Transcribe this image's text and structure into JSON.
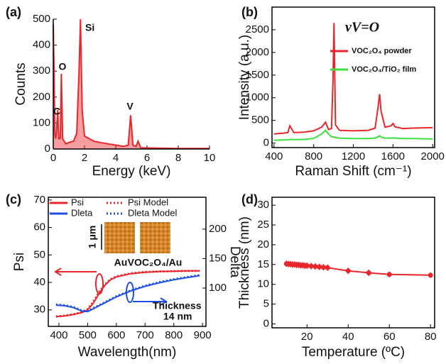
{
  "chart_data": [
    {
      "type": "area",
      "label": "(a)",
      "xlabel": "Energy (keV)",
      "ylabel": "Counts",
      "xlim": [
        0,
        10
      ],
      "ylim": [
        0,
        500
      ],
      "xticks": [
        0,
        2,
        4,
        6,
        8,
        10
      ],
      "yticks": [
        0,
        100,
        200,
        300,
        400,
        500
      ],
      "annotations": [
        "Si",
        "O",
        "C",
        "V"
      ],
      "x": [
        0,
        0.05,
        0.1,
        0.15,
        0.2,
        0.28,
        0.35,
        0.45,
        0.52,
        0.6,
        0.8,
        1.0,
        1.3,
        1.5,
        1.65,
        1.74,
        1.85,
        2.0,
        2.3,
        2.6,
        3,
        3.5,
        4,
        4.5,
        4.8,
        4.95,
        5.1,
        5.3,
        5.43,
        5.6,
        6,
        7,
        8,
        9,
        10
      ],
      "series": [
        {
          "color": "#e8262b",
          "values": [
            480,
            300,
            60,
            40,
            60,
            150,
            40,
            40,
            290,
            40,
            20,
            25,
            30,
            60,
            300,
            500,
            150,
            50,
            40,
            30,
            25,
            20,
            15,
            10,
            15,
            130,
            15,
            10,
            30,
            5,
            4,
            3,
            2,
            2,
            2
          ]
        }
      ]
    },
    {
      "type": "line",
      "label": "(b)",
      "xlabel": "Raman Shift (cm⁻¹)",
      "ylabel": "Intensity (a.u.)",
      "xlim": [
        380,
        2020
      ],
      "ylim": [
        -100,
        3000
      ],
      "xticks": [
        400,
        800,
        1200,
        1600,
        2000
      ],
      "yticks": [
        0,
        500,
        1000,
        1500,
        2000,
        2500
      ],
      "annotations": [
        "νV=O"
      ],
      "x": [
        400,
        500,
        540,
        560,
        600,
        700,
        800,
        880,
        920,
        950,
        980,
        995,
        1005,
        1020,
        1060,
        1200,
        1350,
        1420,
        1450,
        1465,
        1480,
        1520,
        1580,
        1600,
        1620,
        1700,
        1800,
        2000
      ],
      "series": [
        {
          "name": "VOC₂O₄ powder",
          "color": "#e8262b",
          "values": [
            200,
            220,
            230,
            380,
            230,
            240,
            270,
            350,
            460,
            300,
            320,
            1400,
            2650,
            400,
            280,
            270,
            280,
            330,
            800,
            1080,
            700,
            350,
            380,
            430,
            360,
            320,
            330,
            340
          ]
        },
        {
          "name": "VOC₂O₄/TiO₂ film",
          "color": "#3de03d",
          "values": [
            60,
            70,
            70,
            80,
            75,
            80,
            100,
            200,
            280,
            200,
            140,
            130,
            140,
            120,
            110,
            100,
            100,
            110,
            140,
            160,
            130,
            110,
            110,
            115,
            110,
            100,
            100,
            90
          ]
        }
      ]
    },
    {
      "type": "line",
      "label": "(c)",
      "xlabel": "Wavelength(nm)",
      "ylabel": "Psi",
      "y2label": "Delta",
      "xlim": [
        363,
        912
      ],
      "ylim": [
        24,
        71
      ],
      "y2lim": [
        35,
        254
      ],
      "xticks": [
        400,
        500,
        600,
        700,
        800,
        900
      ],
      "yticks": [
        30,
        40,
        50,
        60,
        70
      ],
      "y2ticks": [
        100,
        150,
        200
      ],
      "annotations": [
        "Thickness",
        "14 nm",
        "1 μm",
        "Au",
        "VOC₂O₄/Au"
      ],
      "x": [
        390,
        420,
        450,
        480,
        500,
        520,
        540,
        560,
        580,
        600,
        650,
        700,
        750,
        800,
        850,
        890
      ],
      "series": [
        {
          "name": "Psi",
          "color": "#e8262b",
          "line_style": "solid",
          "values": [
            27.5,
            27.8,
            28.3,
            29,
            30,
            32.5,
            36,
            39,
            41,
            42,
            43.2,
            43.7,
            44,
            44.1,
            44.2,
            44.2
          ]
        },
        {
          "name": "Psi Model",
          "color": "#e8262b",
          "line_style": "dotted",
          "values": [
            27.6,
            27.9,
            28.4,
            29.2,
            30.3,
            33,
            36.5,
            39.3,
            41.2,
            42.2,
            43.3,
            43.8,
            44,
            44.1,
            44.2,
            44.2
          ]
        },
        {
          "name": "Dleta",
          "color": "#1f4fe0",
          "line_style": "solid",
          "axis": "y2",
          "values": [
            71,
            70,
            67,
            61,
            60,
            65,
            70,
            75,
            80,
            85,
            95,
            103,
            109,
            114,
            118,
            121
          ]
        },
        {
          "name": "Dleta Model",
          "color": "#1f4fe0",
          "line_style": "dotted",
          "axis": "y2",
          "values": [
            72,
            71,
            68,
            62,
            61,
            66,
            71,
            76,
            81,
            86,
            96,
            104,
            110,
            115,
            119,
            122
          ]
        }
      ]
    },
    {
      "type": "line",
      "label": "(d)",
      "xlabel": "Temperature (ºC)",
      "ylabel": "Thickness (nm)",
      "xlim": [
        3,
        82
      ],
      "ylim": [
        -1,
        32
      ],
      "xticks": [
        20,
        40,
        60,
        80
      ],
      "yticks": [
        0,
        5,
        10,
        15,
        20,
        25,
        30
      ],
      "x": [
        10,
        11,
        12,
        13,
        14,
        15,
        16,
        17,
        18,
        19,
        20,
        22,
        24,
        26,
        28,
        30,
        40,
        50,
        60,
        80
      ],
      "series": [
        {
          "color": "#e8262b",
          "marker": "circle",
          "values": [
            15.2,
            15.1,
            15.1,
            15,
            15,
            14.9,
            14.9,
            14.8,
            14.8,
            14.7,
            14.7,
            14.6,
            14.5,
            14.4,
            14.3,
            14.2,
            13.4,
            12.9,
            12.5,
            12.3
          ],
          "errors": [
            0.8,
            0.8,
            0.8,
            0.8,
            0.8,
            0.8,
            0.8,
            0.8,
            0.8,
            0.8,
            0.8,
            0.8,
            0.8,
            0.8,
            0.8,
            0.8,
            0.8,
            0.8,
            0.7,
            0.7
          ]
        }
      ]
    }
  ]
}
